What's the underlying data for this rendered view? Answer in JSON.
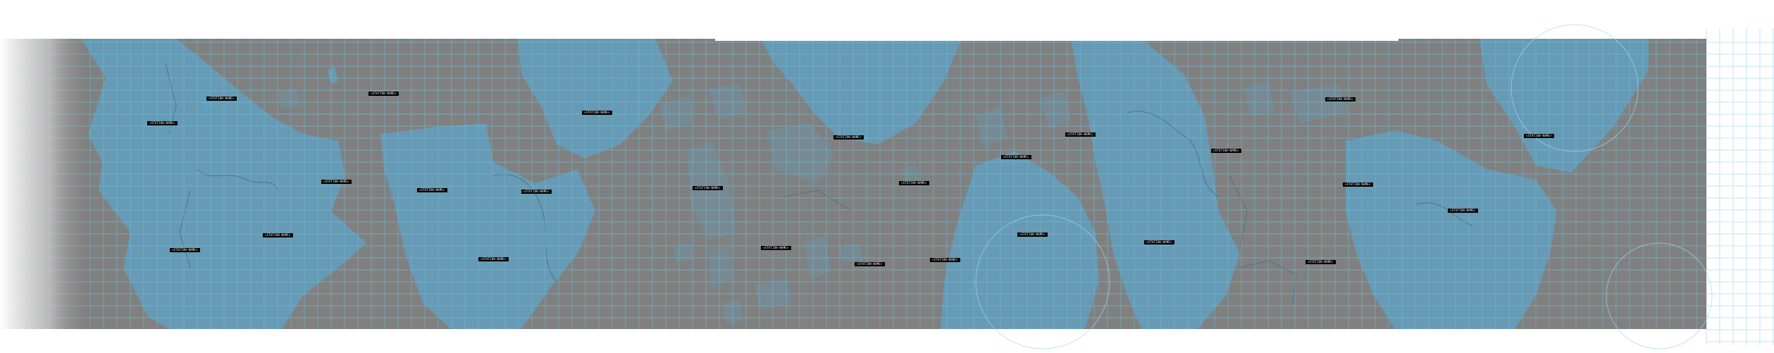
{
  "map": {
    "background_color": "#808080",
    "water_color": "#5da3c8",
    "grid_color": "#69c7e3",
    "edge_fade_color": "#ffffff",
    "labels": [
      {
        "id": "l1",
        "text": "<STATION-NAME>"
      },
      {
        "id": "l2",
        "text": "<STATION-NAME>"
      },
      {
        "id": "l3",
        "text": "<STATION-NAME>"
      },
      {
        "id": "l4",
        "text": "<STATION-NAME>"
      },
      {
        "id": "l5",
        "text": "<STATION-NAME>"
      },
      {
        "id": "l6",
        "text": "<STATION-NAME>"
      },
      {
        "id": "l7",
        "text": "<STATION-NAME>"
      },
      {
        "id": "l8",
        "text": "<STATION-NAME>"
      },
      {
        "id": "l9",
        "text": "<STATION-NAME>"
      },
      {
        "id": "l10",
        "text": "<STATION-NAME>"
      },
      {
        "id": "l11",
        "text": "<STATION-NAME>"
      },
      {
        "id": "l12",
        "text": "<STATION-NAME>"
      },
      {
        "id": "l13",
        "text": "<STATION-NAME>"
      },
      {
        "id": "l14",
        "text": "<STATION-NAME>"
      },
      {
        "id": "l15",
        "text": "<STATION-NAME>"
      },
      {
        "id": "l16",
        "text": "<STATION-NAME>"
      },
      {
        "id": "l17",
        "text": "<STATION-NAME>"
      },
      {
        "id": "l18",
        "text": "<STATION-NAME>"
      },
      {
        "id": "l19",
        "text": "<STATION-NAME>"
      },
      {
        "id": "l20",
        "text": "<STATION-NAME>"
      },
      {
        "id": "l21",
        "text": "<STATION-NAME>"
      },
      {
        "id": "l22",
        "text": "<STATION-NAME>"
      },
      {
        "id": "l23",
        "text": "<STATION-NAME>"
      },
      {
        "id": "l24",
        "text": "<STATION-NAME>"
      },
      {
        "id": "l25",
        "text": "<STATION-NAME>"
      },
      {
        "id": "l26",
        "text": "<STATION-NAME>"
      }
    ]
  }
}
